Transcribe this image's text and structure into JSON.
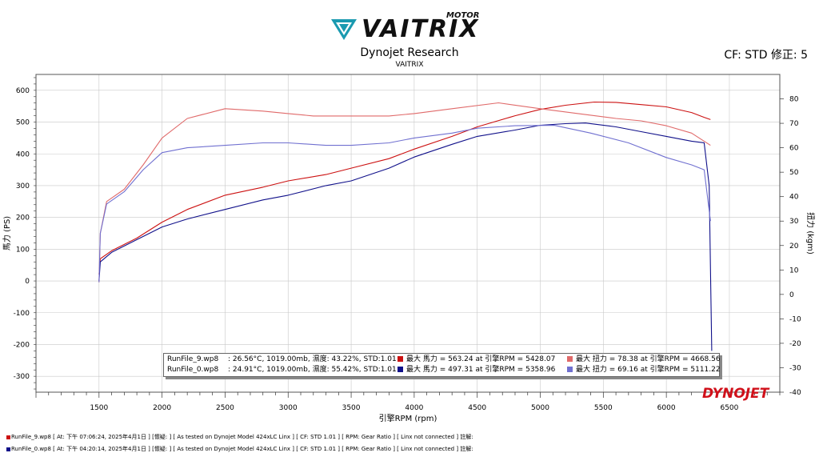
{
  "logo": {
    "brand": "VAITRIX",
    "sub": "MOTOR"
  },
  "header": {
    "title": "Dynojet Research",
    "subtitle": "VAITRIX",
    "cf": "CF: STD 修正: 5"
  },
  "colors": {
    "run9_hp": "#cc1111",
    "run9_tq": "#e06a6a",
    "run0_hp": "#10108a",
    "run0_tq": "#7070d0",
    "grid": "#c8c8c8",
    "dynojet_red": "#d0101a"
  },
  "chart_data": {
    "type": "line",
    "xlabel": "引擎RPM (rpm)",
    "ylabel_left": "馬力 (PS)",
    "ylabel_right": "扭力 (kgm)",
    "xlim": [
      1000,
      6900
    ],
    "ylim_left": [
      -350,
      650
    ],
    "ylim_right": [
      -40,
      90
    ],
    "xticks": [
      1500,
      2000,
      2500,
      3000,
      3500,
      4000,
      4500,
      5000,
      5500,
      6000,
      6500
    ],
    "yticks_left": [
      600,
      500,
      400,
      300,
      200,
      100,
      0,
      -100,
      -200,
      -300
    ],
    "yticks_right": [
      80,
      70,
      60,
      50,
      40,
      30,
      20,
      10,
      0,
      -10,
      -20,
      -30,
      -40
    ],
    "grid": true,
    "series": [
      {
        "name": "RunFile_9.wp8 馬力",
        "axis": "left",
        "color_key": "run9_hp",
        "x": [
          1500,
          1510,
          1600,
          1800,
          2000,
          2200,
          2500,
          2800,
          3000,
          3300,
          3500,
          3800,
          4000,
          4300,
          4500,
          4800,
          5000,
          5200,
          5428,
          5600,
          5800,
          6000,
          6200,
          6300,
          6350
        ],
        "y": [
          20,
          70,
          95,
          135,
          185,
          225,
          270,
          295,
          315,
          335,
          355,
          385,
          415,
          455,
          485,
          520,
          540,
          553,
          563,
          562,
          555,
          548,
          530,
          515,
          508
        ]
      },
      {
        "name": "RunFile_9.wp8 扭力",
        "axis": "right",
        "color_key": "run9_tq",
        "x": [
          1500,
          1510,
          1560,
          1700,
          1850,
          2000,
          2200,
          2500,
          2800,
          3000,
          3200,
          3500,
          3800,
          4000,
          4300,
          4669,
          5000,
          5300,
          5600,
          5800,
          6000,
          6200,
          6350
        ],
        "y": [
          5,
          25,
          38,
          43,
          53,
          64,
          72,
          76,
          75,
          74,
          73,
          73,
          73,
          74,
          76,
          78.38,
          76,
          74,
          72,
          71,
          69,
          66,
          61
        ]
      },
      {
        "name": "RunFile_0.wp8 馬力",
        "axis": "left",
        "color_key": "run0_hp",
        "x": [
          1500,
          1510,
          1600,
          1800,
          2000,
          2200,
          2500,
          2800,
          3000,
          3300,
          3500,
          3800,
          4000,
          4300,
          4500,
          4800,
          5000,
          5200,
          5359,
          5600,
          5800,
          6000,
          6200,
          6300,
          6340,
          6360
        ],
        "y": [
          0,
          60,
          90,
          130,
          170,
          195,
          225,
          255,
          270,
          300,
          315,
          355,
          390,
          430,
          455,
          475,
          490,
          495,
          497,
          485,
          470,
          455,
          440,
          435,
          300,
          -220
        ]
      },
      {
        "name": "RunFile_0.wp8 扭力",
        "axis": "right",
        "color_key": "run0_tq",
        "x": [
          1500,
          1510,
          1560,
          1700,
          1850,
          2000,
          2200,
          2500,
          2800,
          3000,
          3300,
          3500,
          3800,
          4000,
          4300,
          4500,
          4800,
          5111,
          5400,
          5700,
          6000,
          6200,
          6300,
          6350
        ],
        "y": [
          5,
          25,
          37,
          42,
          51,
          58,
          60,
          61,
          62,
          62,
          61,
          61,
          62,
          64,
          66,
          68,
          69,
          69.16,
          66,
          62,
          56,
          53,
          51,
          30
        ]
      }
    ],
    "legend": [
      {
        "file": "RunFile_9.wp8",
        "cond": ": 26.56°C, 1019.00mb, 濕度: 43.22%, STD:1.01",
        "hp": "最大 馬力 = 563.24 at 引擎RPM = 5428.07",
        "tq": "最大 扭力 = 78.38 at 引擎RPM = 4668.56"
      },
      {
        "file": "RunFile_0.wp8",
        "cond": ": 24.91°C, 1019.00mb, 濕度: 55.42%, STD:1.01",
        "hp": "最大 馬力 = 497.31 at 引擎RPM = 5358.96",
        "tq": "最大 扭力 = 69.16 at 引擎RPM = 5111.22"
      }
    ]
  },
  "brand_mark": "DYNOJET",
  "footer": [
    "RunFile_9.wp8 [ At: 下午 07:06:24, 2025年4月1日 ] [懷疑: ] [ As tested on Dynojet Model 424xLC Linx ] [ CF: STD 1.01 ] [ RPM: Gear Ratio ] [ Linx not connected ] 註解:",
    "RunFile_0.wp8 [ At: 下午 04:20:14, 2025年4月1日 ] [懷疑: ] [ As tested on Dynojet Model 424xLC Linx ] [ CF: STD 1.01 ] [ RPM: Gear Ratio ] [ Linx not connected ] 註解:"
  ]
}
